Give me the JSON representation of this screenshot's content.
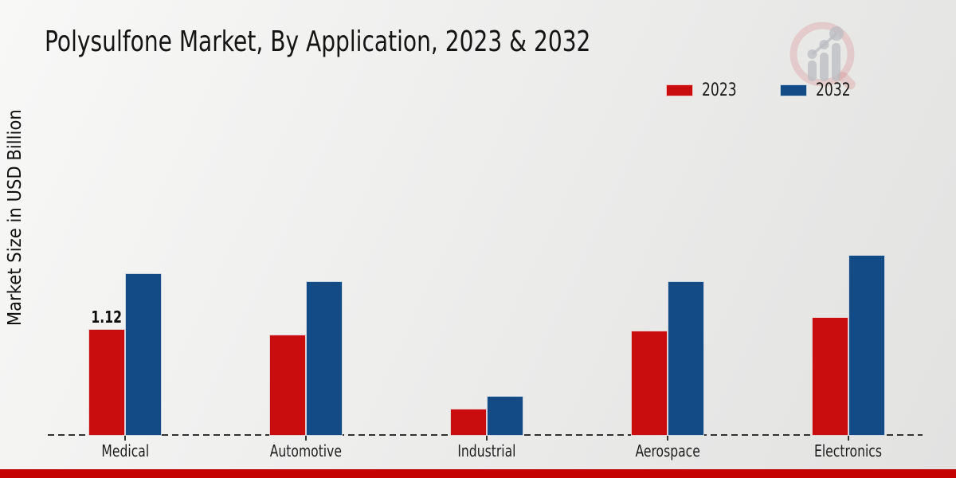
{
  "title": "Polysulfone Market, By Application, 2023 & 2032",
  "y_axis_label": "Market Size in USD Billion",
  "watermark_icon": "magnifier-growth-chart-logo",
  "legend": {
    "position": "top-right",
    "items": [
      {
        "label": "2023",
        "color": "#c90d0e"
      },
      {
        "label": "2032",
        "color": "#134b86"
      }
    ]
  },
  "annotations": [
    {
      "series": "2023",
      "category": "Medical",
      "text": "1.12"
    }
  ],
  "footer_bar_color": "#c50202",
  "chart_data": {
    "type": "bar",
    "title": "Polysulfone Market, By Application, 2023 & 2032",
    "categories": [
      "Medical",
      "Automotive",
      "Industrial",
      "Aerospace",
      "Electronics"
    ],
    "series": [
      {
        "name": "2023",
        "color": "#c90d0e",
        "values": [
          1.12,
          1.06,
          0.28,
          1.1,
          1.24
        ]
      },
      {
        "name": "2032",
        "color": "#134b86",
        "values": [
          1.7,
          1.62,
          0.42,
          1.62,
          1.89
        ]
      }
    ],
    "xlabel": "",
    "ylabel": "Market Size in USD Billion",
    "ylim": [
      0,
      2.3
    ],
    "grid": false,
    "y_ticks_visible": false,
    "baseline_style": "dashed",
    "legend_position": "top-right",
    "data_label_note": "only Medical 2023 bar is labeled (1.12)"
  }
}
